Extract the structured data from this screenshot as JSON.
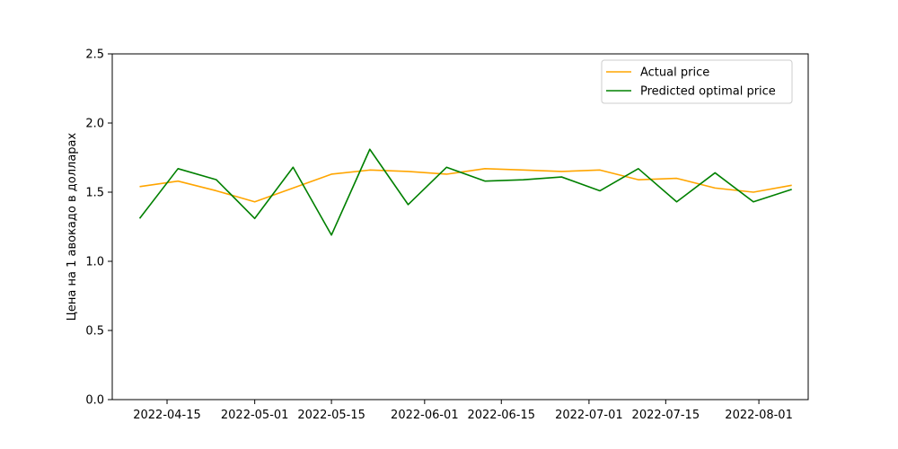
{
  "chart_data": {
    "type": "line",
    "title": "",
    "xlabel": "",
    "ylabel": "Цена на 1 авокадо в долларах",
    "ylim": [
      0,
      2.5
    ],
    "xlim": [
      "2022-04-05",
      "2022-08-10"
    ],
    "yticks": [
      0.0,
      0.5,
      1.0,
      1.5,
      2.0,
      2.5
    ],
    "ytick_labels": [
      "0.0",
      "0.5",
      "1.0",
      "1.5",
      "2.0",
      "2.5"
    ],
    "xticks": [
      "2022-04-15",
      "2022-05-01",
      "2022-05-15",
      "2022-06-01",
      "2022-06-15",
      "2022-07-01",
      "2022-07-15",
      "2022-08-01"
    ],
    "grid": false,
    "legend": "upper right",
    "x": [
      "2022-04-10",
      "2022-04-17",
      "2022-04-24",
      "2022-05-01",
      "2022-05-08",
      "2022-05-15",
      "2022-05-22",
      "2022-05-29",
      "2022-06-05",
      "2022-06-12",
      "2022-06-19",
      "2022-06-26",
      "2022-07-03",
      "2022-07-10",
      "2022-07-17",
      "2022-07-24",
      "2022-07-31",
      "2022-08-07"
    ],
    "series": [
      {
        "name": "Actual price",
        "color": "#ffa500",
        "values": [
          1.54,
          1.58,
          1.51,
          1.43,
          1.53,
          1.63,
          1.66,
          1.65,
          1.63,
          1.67,
          1.66,
          1.65,
          1.66,
          1.59,
          1.6,
          1.53,
          1.5,
          1.55
        ]
      },
      {
        "name": "Predicted optimal price",
        "color": "#008000",
        "values": [
          1.31,
          1.67,
          1.59,
          1.31,
          1.68,
          1.19,
          1.81,
          1.41,
          1.68,
          1.58,
          1.59,
          1.61,
          1.51,
          1.67,
          1.43,
          1.64,
          1.43,
          1.52
        ]
      }
    ]
  }
}
